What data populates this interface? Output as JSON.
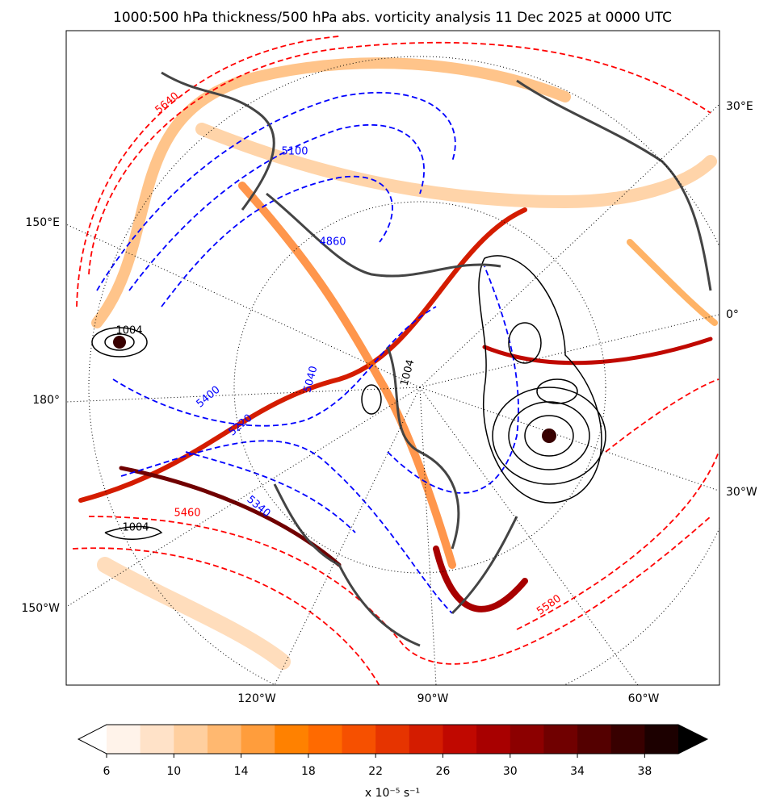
{
  "title": "1000:500 hPa thickness/500 hPa abs. vorticity analysis 11 Dec 2025 at 0000 UTC",
  "map": {
    "lon_labels": [
      "30°E",
      "150°E",
      "0°",
      "180°",
      "30°W",
      "150°W",
      "120°W",
      "90°W",
      "60°W"
    ],
    "contour_labels": [
      {
        "value": 5640,
        "color": "#ff0000"
      },
      {
        "value": 5100,
        "color": "#0000ff"
      },
      {
        "value": 4860,
        "color": "#0000ff"
      },
      {
        "value": 5400,
        "color": "#0000ff"
      },
      {
        "value": 5040,
        "color": "#0000ff"
      },
      {
        "value": 5220,
        "color": "#0000ff"
      },
      {
        "value": 5340,
        "color": "#0000ff"
      },
      {
        "value": 5460,
        "color": "#ff0000"
      },
      {
        "value": 5580,
        "color": "#ff0000"
      },
      {
        "value": 1004,
        "color": "#000000"
      },
      {
        "value": 1004,
        "color": "#000000"
      },
      {
        "value": 1004,
        "color": "#000000"
      }
    ]
  },
  "colorbar": {
    "levels": [
      6,
      8,
      10,
      12,
      14,
      16,
      18,
      20,
      22,
      24,
      26,
      28,
      30,
      32,
      34,
      36,
      38,
      40
    ],
    "colors": [
      "#fff3ea",
      "#ffe2c8",
      "#ffcf9f",
      "#ffb870",
      "#ff9d3c",
      "#ff8100",
      "#ff6a00",
      "#f65000",
      "#e63400",
      "#d41c00",
      "#c00800",
      "#a80000",
      "#8c0000",
      "#700000",
      "#540000",
      "#380000",
      "#1c0000"
    ],
    "under_color": "#ffffff",
    "over_color": "#000000",
    "ticks": [
      6,
      10,
      14,
      18,
      22,
      26,
      30,
      34,
      38
    ],
    "label": "x 10⁻⁵ s⁻¹"
  }
}
